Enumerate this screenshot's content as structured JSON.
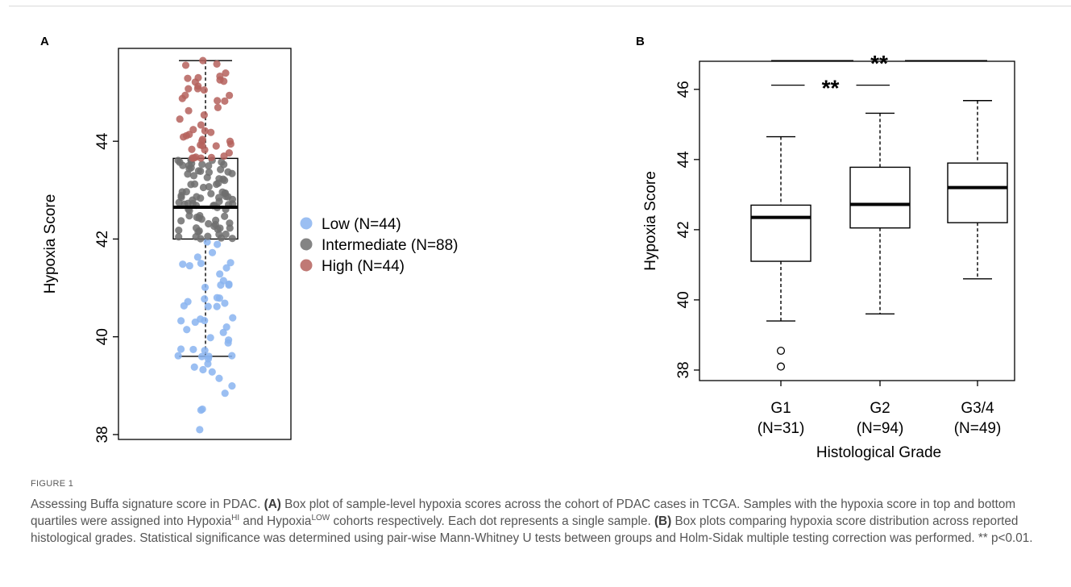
{
  "figure": {
    "panel_a_label": "A",
    "panel_b_label": "B",
    "caption_label": "FIGURE 1",
    "caption": {
      "intro": "Assessing Buffa signature score in PDAC.",
      "a_tag": "(A)",
      "a_text_1": "Box plot of sample-level hypoxia scores across the cohort of PDAC cases in TCGA. Samples with the hypoxia score in top and bottom quartiles were assigned into Hypoxia",
      "a_sup_hi": "HI",
      "a_text_2": "and Hypoxia",
      "a_sup_low": "LOW",
      "a_text_3": "cohorts respectively. Each dot represents a single sample.",
      "b_tag": "(B)",
      "b_text": "Box plots comparing hypoxia score distribution across reported histological grades. Statistical significance was determined using pair-wise Mann-Whitney U tests between groups and Holm-Sidak multiple testing correction was performed. ** p<0.01."
    }
  },
  "chart_data": [
    {
      "type": "box",
      "panel": "A",
      "ylabel": "Hypoxia Score",
      "ylim": [
        37.9,
        45.9
      ],
      "yticks": [
        "38",
        "40",
        "42",
        "44"
      ],
      "box": {
        "min": 39.6,
        "q1": 42.0,
        "median": 42.65,
        "q3": 43.65,
        "max": 45.65
      },
      "legend_position": "right",
      "colors": {
        "Low": "#8ab4f0",
        "Intermediate": "#6e6e6e",
        "High": "#b5615d"
      },
      "legend": [
        {
          "group": "Low",
          "label": "Low (N=44)"
        },
        {
          "group": "Intermediate",
          "label": "Intermediate (N=88)"
        },
        {
          "group": "High",
          "label": "High (N=44)"
        }
      ],
      "groups": [
        {
          "group": "Low",
          "n": 44,
          "range": [
            38.1,
            42.0
          ]
        },
        {
          "group": "Intermediate",
          "n": 88,
          "range": [
            42.0,
            43.65
          ]
        },
        {
          "group": "High",
          "n": 44,
          "range": [
            43.65,
            45.65
          ]
        }
      ],
      "highlight_points": [
        {
          "group": "Low",
          "y": 38.1
        },
        {
          "group": "Low",
          "y": 38.5
        },
        {
          "group": "Low",
          "y": 38.52
        },
        {
          "group": "Low",
          "y": 39.38
        },
        {
          "group": "Low",
          "y": 39.55
        },
        {
          "group": "Low",
          "y": 39.6
        },
        {
          "group": "Low",
          "y": 39.72
        },
        {
          "group": "Low",
          "y": 40.62
        },
        {
          "group": "High",
          "y": 45.65
        },
        {
          "group": "High",
          "y": 45.3
        }
      ]
    },
    {
      "type": "box",
      "panel": "B",
      "xlabel": "Histological Grade",
      "ylabel": "Hypoxia Score",
      "ylim": [
        37.7,
        46.8
      ],
      "yticks": [
        "38",
        "40",
        "42",
        "44",
        "46"
      ],
      "categories": [
        {
          "name": "G1",
          "n_label": "(N=31)"
        },
        {
          "name": "G2",
          "n_label": "(N=94)"
        },
        {
          "name": "G3/4",
          "n_label": "(N=49)"
        }
      ],
      "boxes": [
        {
          "min": 39.4,
          "q1": 41.1,
          "median": 42.35,
          "q3": 42.7,
          "max": 44.65,
          "outliers": [
            38.55,
            38.1
          ]
        },
        {
          "min": 39.6,
          "q1": 42.05,
          "median": 42.72,
          "q3": 43.78,
          "max": 45.32,
          "outliers": []
        },
        {
          "min": 40.6,
          "q1": 42.2,
          "median": 43.2,
          "q3": 43.9,
          "max": 45.68,
          "outliers": []
        }
      ],
      "significance": [
        {
          "from": "G1",
          "to": "G2",
          "label": "**",
          "y": 46.12
        },
        {
          "from": "G1",
          "to": "G3/4",
          "label": "**",
          "y": 46.82
        }
      ]
    }
  ]
}
